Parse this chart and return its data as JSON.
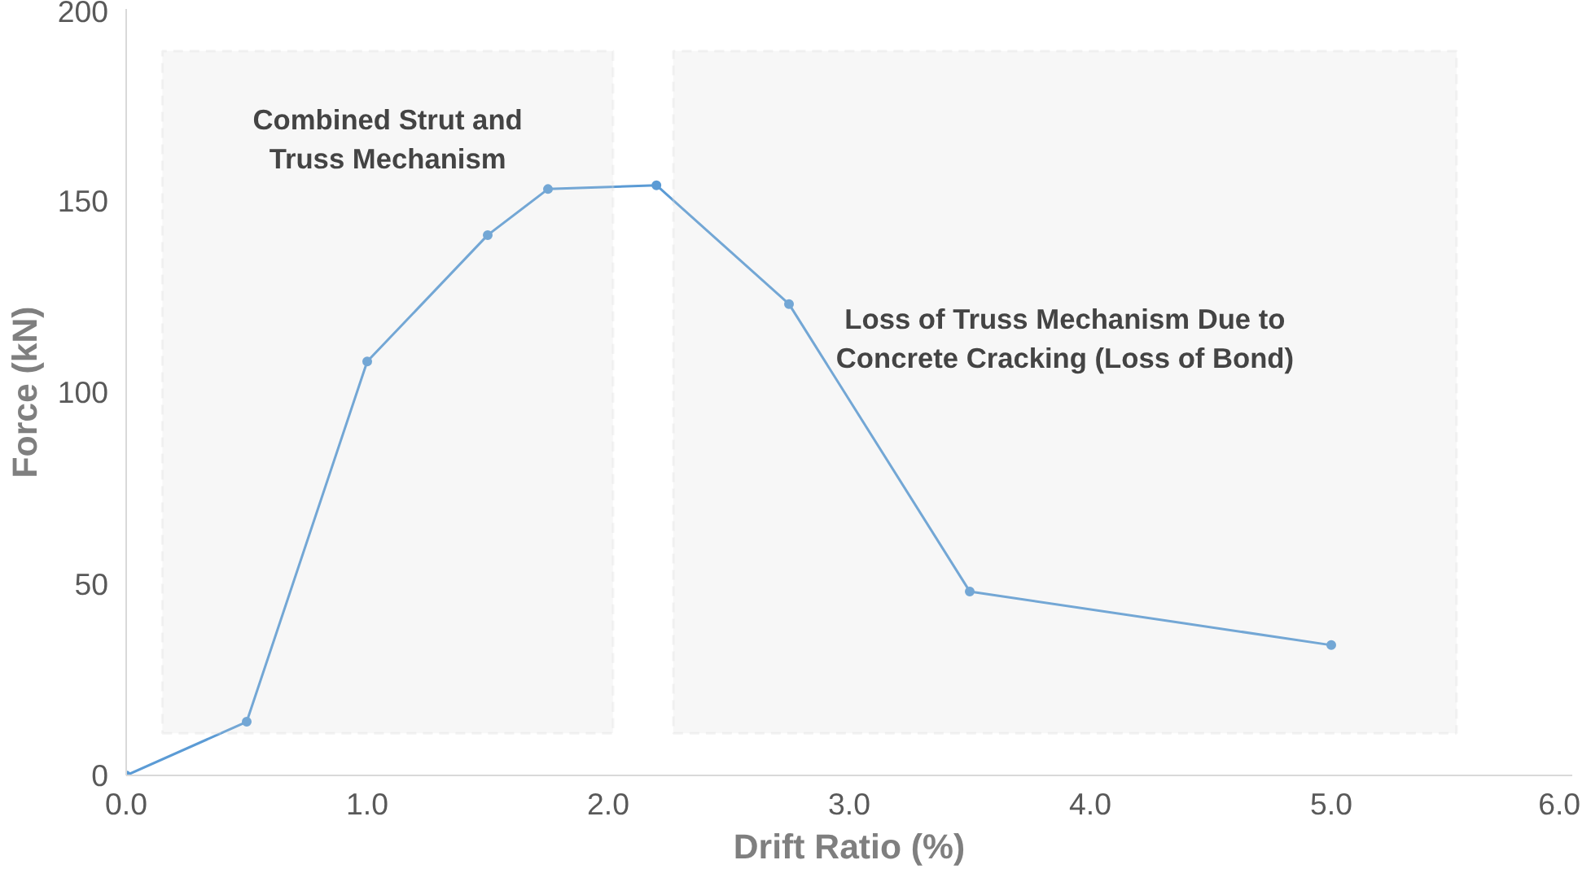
{
  "chart_data": {
    "type": "line",
    "xlabel": "Drift Ratio (%)",
    "ylabel": "Force (kN)",
    "x": [
      0,
      0.5,
      1.0,
      1.5,
      1.75,
      2.2,
      2.75,
      3.5,
      5.0
    ],
    "series": [
      {
        "color": "#5b9bd5",
        "values": [
          0,
          14,
          108,
          141,
          153,
          154,
          123,
          48,
          34
        ]
      }
    ],
    "xlim": [
      0,
      6
    ],
    "xticks": [
      {
        "value": 0,
        "label": "0.0"
      },
      {
        "value": 1,
        "label": "1.0"
      },
      {
        "value": 2,
        "label": "2.0"
      },
      {
        "value": 3,
        "label": "3.0"
      },
      {
        "value": 4,
        "label": "4.0"
      },
      {
        "value": 5,
        "label": "5.0"
      },
      {
        "value": 6,
        "label": "6.0"
      }
    ],
    "ylim": [
      0,
      200
    ],
    "yticks": [
      0,
      50,
      100,
      150,
      200
    ],
    "grid": false,
    "marker": "circle",
    "line_style": "solid",
    "bands": [
      {
        "axis": "x",
        "from": 0.15,
        "to": 2.02,
        "label": "Combined Strut and\nTruss Mechanism",
        "color": "#d9d9d9"
      },
      {
        "axis": "x",
        "from": 2.27,
        "to": 5.52,
        "label": "Loss of Truss Mechanism Due to\nConcrete Cracking (Loss of Bond)",
        "color": "#d9d9d9"
      }
    ]
  }
}
